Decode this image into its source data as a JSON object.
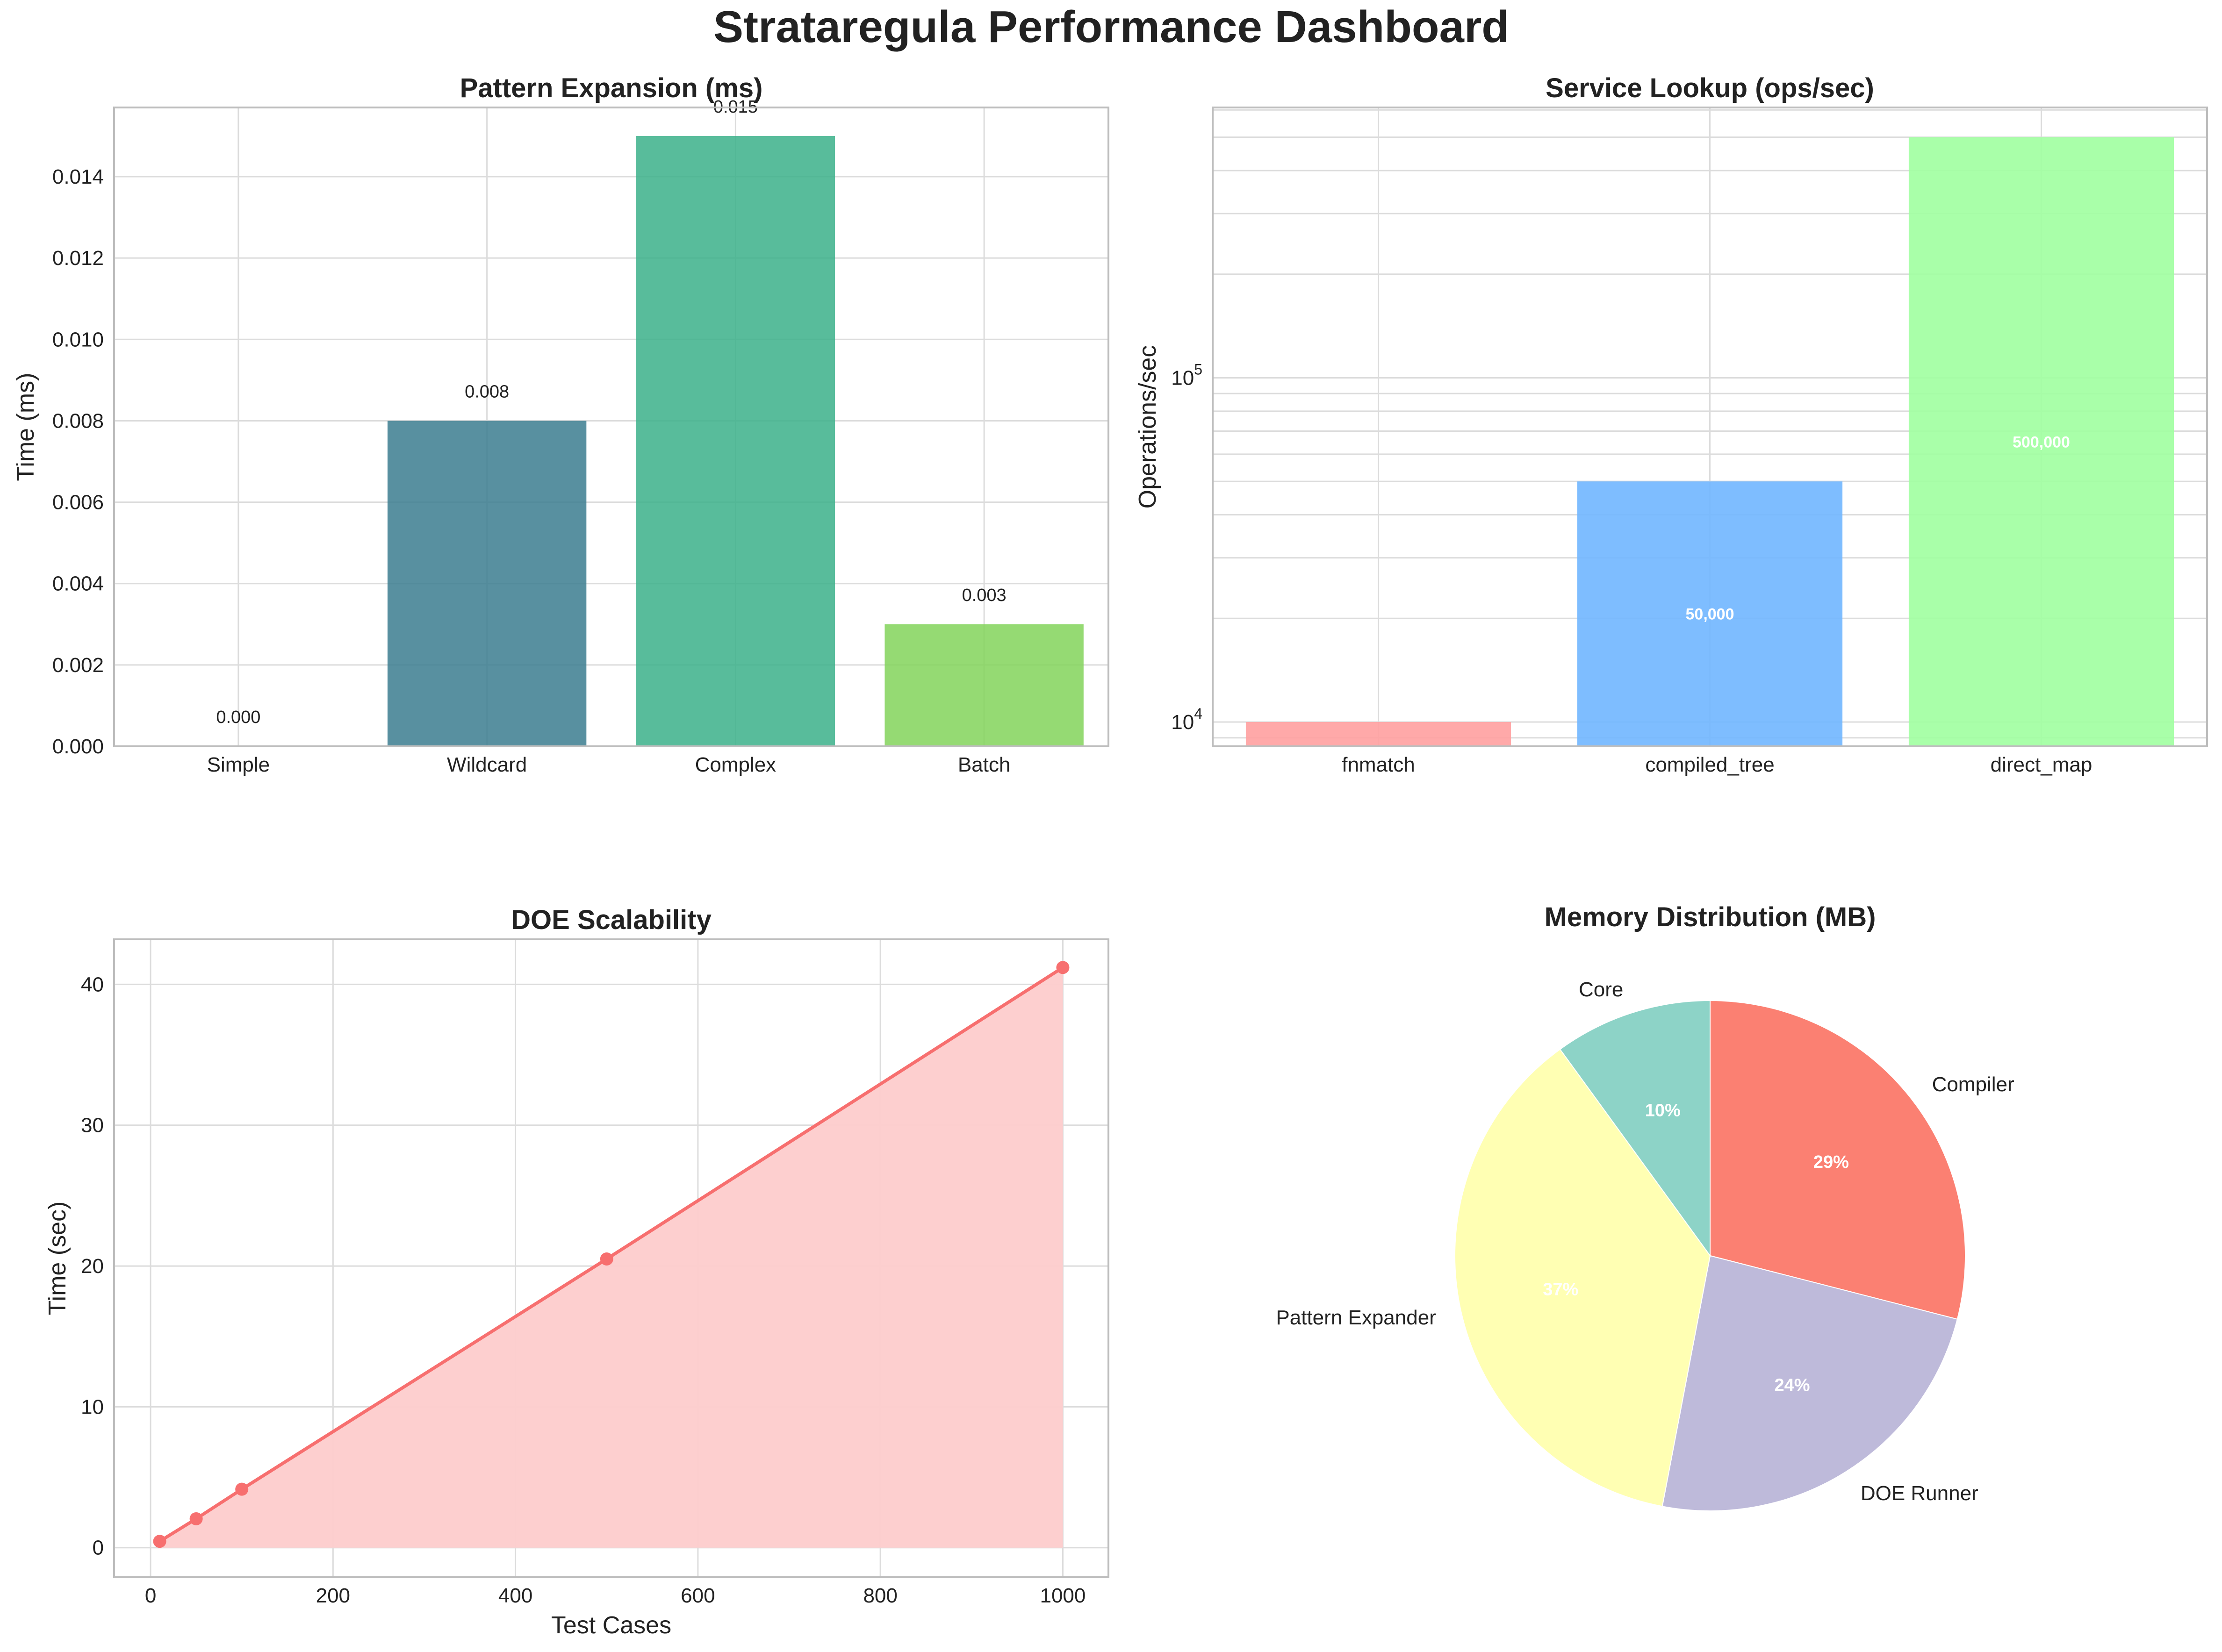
{
  "dashboard_title": "Strataregula Performance Dashboard",
  "chart_data": [
    {
      "id": "pattern",
      "type": "bar",
      "title": "Pattern Expansion (ms)",
      "xlabel": "",
      "ylabel": "Time (ms)",
      "categories": [
        "Simple",
        "Wildcard",
        "Complex",
        "Batch"
      ],
      "values": [
        0.0,
        0.008,
        0.015,
        0.003
      ],
      "value_labels": [
        "0.000",
        "0.008",
        "0.015",
        "0.003"
      ],
      "colors": [
        "#440154",
        "#3b7c8f",
        "#3bb08a",
        "#82d35a"
      ],
      "ylim": [
        0,
        0.0157
      ],
      "yticks": [
        0,
        0.002,
        0.004,
        0.006,
        0.008,
        0.01,
        0.012,
        0.014
      ],
      "ytick_labels": [
        "0.000",
        "0.002",
        "0.004",
        "0.006",
        "0.008",
        "0.010",
        "0.012",
        "0.014"
      ]
    },
    {
      "id": "lookup",
      "type": "bar",
      "title": "Service Lookup (ops/sec)",
      "xlabel": "",
      "ylabel": "Operations/sec",
      "yscale": "log",
      "categories": [
        "fnmatch",
        "compiled_tree",
        "direct_map"
      ],
      "values": [
        10000,
        50000,
        500000
      ],
      "value_labels": [
        "",
        "50,000",
        "500,000"
      ],
      "colors": [
        "#ffa0a0",
        "#70b6ff",
        "#a0ffa0"
      ],
      "ylim": [
        8500,
        610000
      ],
      "major_ticks": [
        {
          "value": 10000,
          "base": "10",
          "exp": "4"
        },
        {
          "value": 100000,
          "base": "10",
          "exp": "5"
        }
      ]
    },
    {
      "id": "doe",
      "type": "area",
      "title": "DOE Scalability",
      "xlabel": "Test Cases",
      "ylabel": "Time (sec)",
      "x": [
        10,
        50,
        100,
        500,
        1000
      ],
      "y": [
        0.45,
        2.05,
        4.15,
        20.5,
        41.2
      ],
      "color": "#f76f6f",
      "fill_color": "#fdcccc",
      "xlim": [
        -40,
        1050
      ],
      "ylim": [
        -2.1,
        43.2
      ],
      "xticks": [
        0,
        200,
        400,
        600,
        800,
        1000
      ],
      "xtick_labels": [
        "0",
        "200",
        "400",
        "600",
        "800",
        "1000"
      ],
      "yticks": [
        0,
        10,
        20,
        30,
        40
      ],
      "ytick_labels": [
        "0",
        "10",
        "20",
        "30",
        "40"
      ]
    },
    {
      "id": "memory",
      "type": "pie",
      "title": "Memory Distribution (MB)",
      "labels": [
        "Compiler",
        "DOE Runner",
        "Pattern Expander",
        "Core"
      ],
      "values": [
        29,
        24,
        37,
        10
      ],
      "pct_labels": [
        "29%",
        "24%",
        "37%",
        "10%"
      ],
      "colors": [
        "#fb8072",
        "#bebada",
        "#ffffb3",
        "#8dd3c7"
      ],
      "start_angle_deg": 90,
      "direction": "clockwise"
    }
  ]
}
